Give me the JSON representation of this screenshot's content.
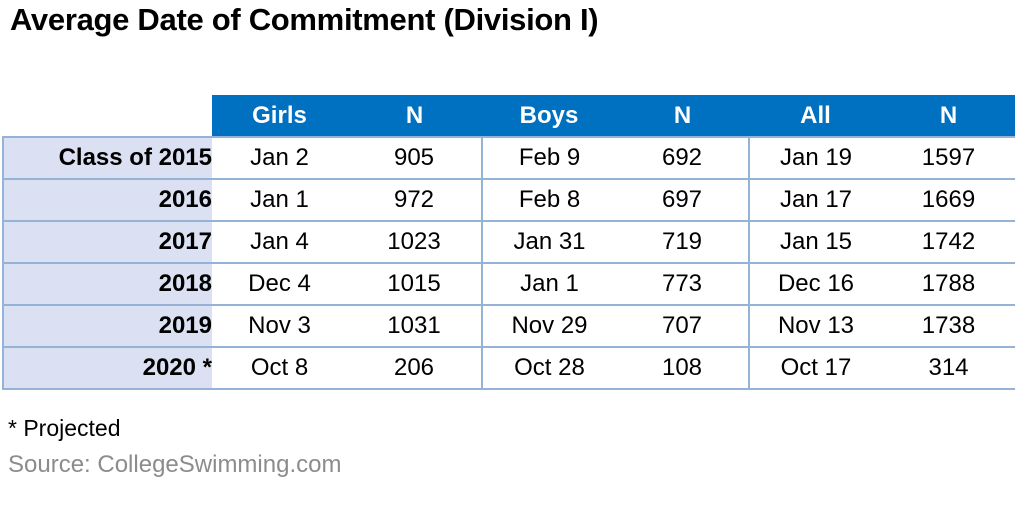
{
  "chart_data": {
    "type": "table",
    "title": "Average Date of Commitment (Division I)",
    "columns": [
      "Girls",
      "N",
      "Boys",
      "N",
      "All",
      "N"
    ],
    "rows": [
      {
        "label": "Class of 2015",
        "values": [
          "Jan 2",
          "905",
          "Feb 9",
          "692",
          "Jan 19",
          "1597"
        ]
      },
      {
        "label": "2016",
        "values": [
          "Jan 1",
          "972",
          "Feb 8",
          "697",
          "Jan 17",
          "1669"
        ]
      },
      {
        "label": "2017",
        "values": [
          "Jan 4",
          "1023",
          "Jan 31",
          "719",
          "Jan 15",
          "1742"
        ]
      },
      {
        "label": "2018",
        "values": [
          "Dec 4",
          "1015",
          "Jan 1",
          "773",
          "Dec 16",
          "1788"
        ]
      },
      {
        "label": "2019",
        "values": [
          "Nov 3",
          "1031",
          "Nov 29",
          "707",
          "Nov 13",
          "1738"
        ]
      },
      {
        "label": "2020 *",
        "values": [
          "Oct 8",
          "206",
          "Oct 28",
          "108",
          "Oct 17",
          "314"
        ]
      }
    ]
  },
  "footnote": "* Projected",
  "source": "Source: CollegeSwimming.com",
  "colors": {
    "header_bg": "#0070C0",
    "header_text": "#FFFFFF",
    "row_label_bg": "#DBE0F2",
    "grid_line": "#95B3D7",
    "source_text": "#8C8C8C"
  }
}
